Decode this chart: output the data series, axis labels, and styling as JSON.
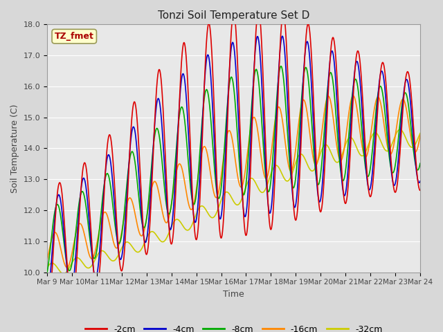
{
  "title": "Tonzi Soil Temperature Set D",
  "xlabel": "Time",
  "ylabel": "Soil Temperature (C)",
  "ylim": [
    10.0,
    18.0
  ],
  "yticks": [
    10.0,
    11.0,
    12.0,
    13.0,
    14.0,
    15.0,
    16.0,
    17.0,
    18.0
  ],
  "xtick_labels": [
    "Mar 9",
    "Mar 10",
    "Mar 11",
    "Mar 12",
    "Mar 13",
    "Mar 14",
    "Mar 15",
    "Mar 16",
    "Mar 17",
    "Mar 18",
    "Mar 19",
    "Mar 20",
    "Mar 21",
    "Mar 22",
    "Mar 23",
    "Mar 24"
  ],
  "series_colors": [
    "#dd0000",
    "#0000cc",
    "#00aa00",
    "#ff8800",
    "#cccc00"
  ],
  "series_labels": [
    "-2cm",
    "-4cm",
    "-8cm",
    "-16cm",
    "-32cm"
  ],
  "legend_label": "TZ_fmet",
  "background_color": "#e8e8e8",
  "grid_color": "#ffffff",
  "n_days": 15
}
